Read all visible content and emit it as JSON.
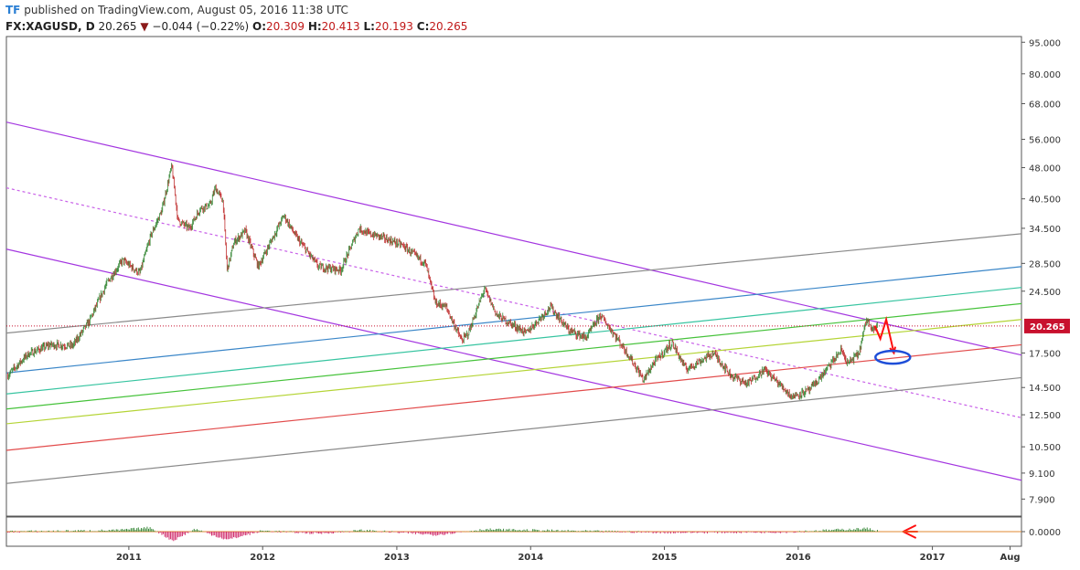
{
  "header": {
    "logo": "TF",
    "published": "published on TradingView.com, August 05, 2016 11:38 UTC",
    "symbol": "FX:XAGUSD, D",
    "last": "20.265",
    "change": "−0.044 (−0.22%)",
    "open_label": "O:",
    "open": "20.309",
    "high_label": "H:",
    "high": "20.413",
    "low_label": "L:",
    "low": "20.193",
    "close_label": "C:",
    "close": "20.265",
    "down_icon": "triangle-down-icon"
  },
  "chart_data": {
    "type": "line",
    "y_scale": "log",
    "ylim": [
      7.2,
      98
    ],
    "xlim": [
      "2010-02-01",
      "2017-09-01"
    ],
    "y_ticks": [
      "95.000",
      "80.000",
      "68.000",
      "56.000",
      "48.000",
      "40.500",
      "34.500",
      "28.500",
      "24.500",
      "20.265",
      "17.500",
      "14.500",
      "12.500",
      "10.500",
      "9.100",
      "7.900"
    ],
    "x_ticks": [
      {
        "label": "2011",
        "date": "2011-01-01"
      },
      {
        "label": "2012",
        "date": "2012-01-01"
      },
      {
        "label": "2013",
        "date": "2013-01-01"
      },
      {
        "label": "2014",
        "date": "2014-01-01"
      },
      {
        "label": "2015",
        "date": "2015-01-01"
      },
      {
        "label": "2016",
        "date": "2016-01-01"
      },
      {
        "label": "2017",
        "date": "2017-01-01"
      },
      {
        "label": "Aug",
        "date": "2017-08-01"
      }
    ],
    "last_price": 20.265,
    "last_price_color": "#c8102e",
    "price_path": [
      [
        "2010-02-05",
        15.5
      ],
      [
        "2010-04-01",
        17.4
      ],
      [
        "2010-06-01",
        18.3
      ],
      [
        "2010-08-01",
        18.2
      ],
      [
        "2010-09-15",
        20.8
      ],
      [
        "2010-11-01",
        25.5
      ],
      [
        "2010-12-15",
        29.0
      ],
      [
        "2011-01-31",
        27.0
      ],
      [
        "2011-03-01",
        33.0
      ],
      [
        "2011-04-01",
        38.0
      ],
      [
        "2011-04-28",
        48.5
      ],
      [
        "2011-05-15",
        36.0
      ],
      [
        "2011-06-15",
        34.5
      ],
      [
        "2011-07-15",
        38.5
      ],
      [
        "2011-08-10",
        39.0
      ],
      [
        "2011-08-25",
        43.0
      ],
      [
        "2011-09-15",
        40.0
      ],
      [
        "2011-09-26",
        27.5
      ],
      [
        "2011-10-15",
        32.0
      ],
      [
        "2011-11-15",
        34.0
      ],
      [
        "2011-12-20",
        28.0
      ],
      [
        "2012-02-28",
        37.0
      ],
      [
        "2012-04-01",
        33.0
      ],
      [
        "2012-06-01",
        28.0
      ],
      [
        "2012-08-01",
        27.5
      ],
      [
        "2012-09-20",
        34.5
      ],
      [
        "2012-10-15",
        33.5
      ],
      [
        "2012-11-15",
        33.0
      ],
      [
        "2013-01-15",
        31.5
      ],
      [
        "2013-02-15",
        30.0
      ],
      [
        "2013-03-20",
        28.5
      ],
      [
        "2013-04-16",
        23.0
      ],
      [
        "2013-05-15",
        22.5
      ],
      [
        "2013-06-27",
        18.7
      ],
      [
        "2013-07-15",
        19.5
      ],
      [
        "2013-08-28",
        24.8
      ],
      [
        "2013-10-01",
        21.5
      ],
      [
        "2013-12-20",
        19.5
      ],
      [
        "2014-02-24",
        22.5
      ],
      [
        "2014-04-15",
        19.8
      ],
      [
        "2014-06-01",
        19.0
      ],
      [
        "2014-07-10",
        21.5
      ],
      [
        "2014-08-15",
        19.5
      ],
      [
        "2014-10-01",
        17.0
      ],
      [
        "2014-11-05",
        15.1
      ],
      [
        "2014-12-01",
        16.5
      ],
      [
        "2015-01-22",
        18.5
      ],
      [
        "2015-03-01",
        16.0
      ],
      [
        "2015-05-15",
        17.5
      ],
      [
        "2015-07-01",
        15.5
      ],
      [
        "2015-08-15",
        14.8
      ],
      [
        "2015-10-01",
        16.0
      ],
      [
        "2015-12-15",
        13.8
      ],
      [
        "2016-02-01",
        14.3
      ],
      [
        "2016-03-01",
        15.3
      ],
      [
        "2016-04-28",
        17.8
      ],
      [
        "2016-05-15",
        16.5
      ],
      [
        "2016-06-15",
        17.5
      ],
      [
        "2016-07-05",
        21.0
      ],
      [
        "2016-07-25",
        20.0
      ],
      [
        "2016-08-05",
        20.265
      ]
    ],
    "indicator_path": [
      [
        "2010-02-05",
        0.0
      ],
      [
        "2010-06-01",
        0.05
      ],
      [
        "2010-12-01",
        0.15
      ],
      [
        "2011-03-01",
        0.45
      ],
      [
        "2011-05-01",
        -1.0
      ],
      [
        "2011-07-01",
        0.3
      ],
      [
        "2011-09-26",
        -0.9
      ],
      [
        "2012-01-01",
        0.1
      ],
      [
        "2012-06-01",
        -0.2
      ],
      [
        "2012-10-01",
        0.15
      ],
      [
        "2013-04-16",
        -0.35
      ],
      [
        "2013-08-28",
        0.25
      ],
      [
        "2014-06-01",
        0.05
      ],
      [
        "2015-01-01",
        -0.1
      ],
      [
        "2015-12-01",
        -0.05
      ],
      [
        "2016-07-05",
        0.35
      ],
      [
        "2016-08-05",
        0.1
      ]
    ],
    "indicator_tick": "0.0000",
    "lines": [
      {
        "from": [
          "2010-02-01",
          61.5
        ],
        "to": [
          "2017-09-01",
          17.3
        ],
        "color": "#a335e0",
        "style": "solid"
      },
      {
        "from": [
          "2010-02-01",
          43.0
        ],
        "to": [
          "2017-09-01",
          12.3
        ],
        "color": "#c860e8",
        "style": "dashed"
      },
      {
        "from": [
          "2010-02-01",
          30.8
        ],
        "to": [
          "2017-09-01",
          8.75
        ],
        "color": "#a335e0",
        "style": "solid"
      },
      {
        "from": [
          "2010-02-01",
          19.5
        ],
        "to": [
          "2017-09-01",
          33.5
        ],
        "color": "#8a8a8a",
        "style": "solid"
      },
      {
        "from": [
          "2010-02-01",
          15.7
        ],
        "to": [
          "2017-09-01",
          28.0
        ],
        "color": "#3a86c8",
        "style": "solid"
      },
      {
        "from": [
          "2010-02-01",
          14.0
        ],
        "to": [
          "2017-09-01",
          25.0
        ],
        "color": "#36c4a0",
        "style": "solid"
      },
      {
        "from": [
          "2010-02-01",
          12.9
        ],
        "to": [
          "2017-09-01",
          22.9
        ],
        "color": "#45c23a",
        "style": "solid"
      },
      {
        "from": [
          "2010-02-01",
          11.9
        ],
        "to": [
          "2017-09-01",
          21.0
        ],
        "color": "#b4d435",
        "style": "solid"
      },
      {
        "from": [
          "2010-02-01",
          10.3
        ],
        "to": [
          "2017-09-01",
          18.3
        ],
        "color": "#e24b4b",
        "style": "solid"
      },
      {
        "from": [
          "2010-02-01",
          8.6
        ],
        "to": [
          "2017-09-01",
          15.3
        ],
        "color": "#8a8a8a",
        "style": "solid"
      }
    ],
    "annotations": [
      {
        "type": "arrow",
        "points": [
          [
            "2016-07-28",
            20.3
          ],
          [
            "2016-08-12",
            18.9
          ],
          [
            "2016-08-28",
            21.0
          ],
          [
            "2016-09-18",
            17.5
          ]
        ],
        "color": "#ff1010"
      },
      {
        "type": "ellipse",
        "center": [
          "2016-09-15",
          17.1
        ],
        "color": "#1e4ed8"
      },
      {
        "type": "arrow-left",
        "at": [
          "2016-10-01",
          0.0
        ],
        "color": "#ff1010",
        "pane": "indicator"
      }
    ],
    "grid": false,
    "legend": "none"
  }
}
